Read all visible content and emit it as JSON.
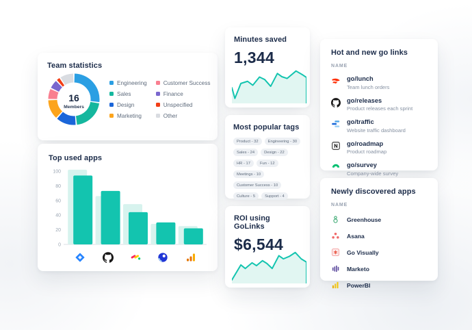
{
  "theme": {
    "accent_teal": "#13C4AF",
    "spark_fill": "#E1F6F2",
    "navy_text": "#1B2B49",
    "gray_text": "#8691A2"
  },
  "cards": {
    "tags": {
      "title": "Most popular tags",
      "items": [
        {
          "text": "Product - 32"
        },
        {
          "text": "Engineering - 30"
        },
        {
          "text": "Sales - 24"
        },
        {
          "text": "Design - 22"
        },
        {
          "text": "HR - 17"
        },
        {
          "text": "Fun - 12"
        },
        {
          "text": "Meetings - 10"
        },
        {
          "text": "Customer Success - 10"
        },
        {
          "text": "Culture - 5"
        },
        {
          "text": "Support - 4"
        }
      ]
    },
    "golinks": {
      "title": "Hot and new go links",
      "column_header": "NAME",
      "items": [
        {
          "icon": "doordash-icon",
          "name": "go/lunch",
          "description": "Team lunch orders"
        },
        {
          "icon": "github-icon",
          "name": "go/releases",
          "description": "Product releases each sprint"
        },
        {
          "icon": "traffic-icon",
          "name": "go/traffic",
          "description": "Website traffic dashboard"
        },
        {
          "icon": "notion-icon",
          "name": "go/roadmap",
          "description": "Product roadmap"
        },
        {
          "icon": "survey-icon",
          "name": "go/survey",
          "description": "Company-wide survey"
        }
      ]
    },
    "apps": {
      "title": "Newly discovered apps",
      "column_header": "NAME",
      "items": [
        {
          "icon": "greenhouse-icon",
          "name": "Greenhouse"
        },
        {
          "icon": "asana-icon",
          "name": "Asana"
        },
        {
          "icon": "govisually-icon",
          "name": "Go Visually"
        },
        {
          "icon": "marketo-icon",
          "name": "Marketo"
        },
        {
          "icon": "powerbi-icon",
          "name": "PowerBI"
        }
      ]
    }
  },
  "chart_data": [
    {
      "type": "donut",
      "title": "Team statistics",
      "center_value": "16",
      "center_label": "Members",
      "total_members": 16,
      "legend_position": "right",
      "segments": [
        {
          "label": "Engineering",
          "color": "#2B9FE3",
          "degrees": 95
        },
        {
          "label": "Sales",
          "color": "#15B79E",
          "degrees": 74
        },
        {
          "label": "Design",
          "color": "#1B66D9",
          "degrees": 45
        },
        {
          "label": "Marketing",
          "color": "#FCA41C",
          "degrees": 44
        },
        {
          "label": "Customer Success",
          "color": "#F97F90",
          "degrees": 23
        },
        {
          "label": "Finance",
          "color": "#7A67CE",
          "degrees": 19
        },
        {
          "label": "Unspecified",
          "color": "#F23E16",
          "degrees": 7
        },
        {
          "label": "Other",
          "color": "#D9DCE1",
          "degrees": 30
        }
      ]
    },
    {
      "type": "bar",
      "title": "Top used apps",
      "ylim": [
        0,
        100
      ],
      "yticks": [
        0,
        20,
        40,
        60,
        80,
        100
      ],
      "grid": false,
      "categories": [
        {
          "name": "Jira",
          "icon": "jira-icon"
        },
        {
          "name": "GitHub",
          "icon": "github-icon"
        },
        {
          "name": "monday.com",
          "icon": "monday-icon"
        },
        {
          "name": "Looker",
          "icon": "looker-icon"
        },
        {
          "name": "Google Analytics",
          "icon": "googleanalytics-icon"
        }
      ],
      "series": [
        {
          "name": "highlight",
          "color": "#D7F3EE",
          "values": [
            102,
            66,
            55,
            28,
            25
          ]
        },
        {
          "name": "current",
          "color": "#13C4AF",
          "values": [
            94,
            73,
            44,
            30,
            22
          ]
        }
      ]
    },
    {
      "type": "area",
      "title": "Minutes saved",
      "value": "1,344",
      "stroke": "#13C4AF",
      "fill": "#E1F6F2",
      "points": [
        [
          0,
          56
        ],
        [
          4,
          86
        ],
        [
          12,
          44
        ],
        [
          21,
          38
        ],
        [
          28,
          49
        ],
        [
          37,
          26
        ],
        [
          44,
          33
        ],
        [
          52,
          52
        ],
        [
          61,
          16
        ],
        [
          67,
          25
        ],
        [
          74,
          30
        ],
        [
          86,
          9
        ],
        [
          95,
          20
        ],
        [
          100,
          27
        ]
      ]
    },
    {
      "type": "area",
      "title": "ROI using GoLinks",
      "value": "$6,544",
      "stroke": "#13C4AF",
      "fill": "#E1F6F2",
      "points": [
        [
          0,
          90
        ],
        [
          12,
          48
        ],
        [
          18,
          58
        ],
        [
          27,
          42
        ],
        [
          33,
          50
        ],
        [
          41,
          36
        ],
        [
          47,
          44
        ],
        [
          54,
          58
        ],
        [
          63,
          22
        ],
        [
          69,
          31
        ],
        [
          77,
          24
        ],
        [
          85,
          13
        ],
        [
          93,
          31
        ],
        [
          100,
          40
        ]
      ]
    }
  ]
}
